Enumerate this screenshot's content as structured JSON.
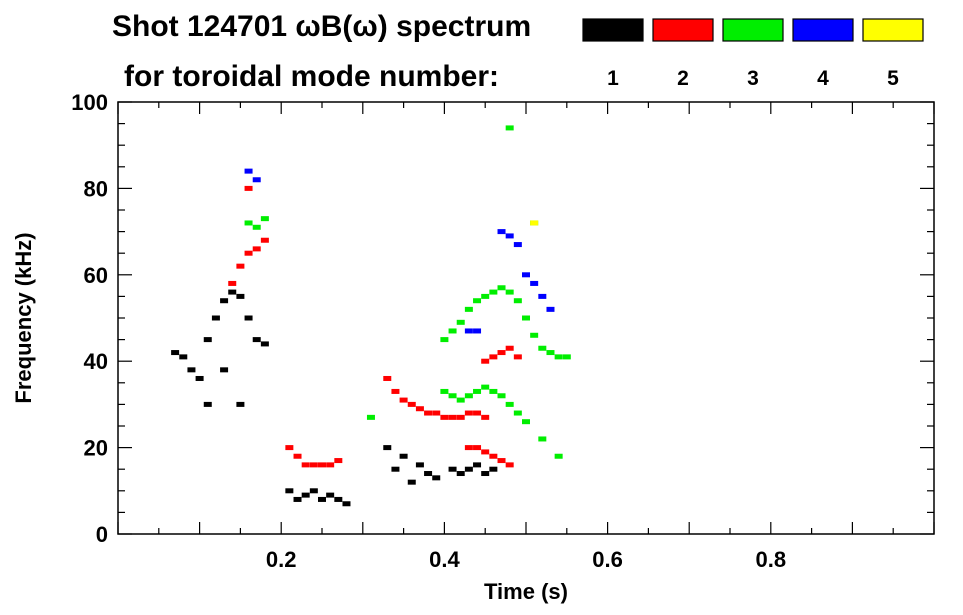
{
  "chart_data": {
    "type": "scatter",
    "title_line1": "Shot 124701 ωB(ω) spectrum",
    "title_line2": "for toroidal mode number:",
    "xlabel": "Time (s)",
    "ylabel": "Frequency (kHz)",
    "xlim": [
      0.0,
      1.0
    ],
    "ylim": [
      0,
      100
    ],
    "xticks": [
      0.2,
      0.4,
      0.6,
      0.8
    ],
    "xtick_labels": [
      "0.2",
      "0.4",
      "0.6",
      "0.8"
    ],
    "yticks": [
      0,
      20,
      40,
      60,
      80,
      100
    ],
    "ytick_labels": [
      "0",
      "20",
      "40",
      "60",
      "80",
      "100"
    ],
    "grid": false,
    "legend_placement": "top-right",
    "series": [
      {
        "name": "1",
        "color": "#000000",
        "points": [
          [
            0.07,
            42
          ],
          [
            0.08,
            41
          ],
          [
            0.09,
            38
          ],
          [
            0.1,
            36
          ],
          [
            0.11,
            45
          ],
          [
            0.12,
            50
          ],
          [
            0.13,
            54
          ],
          [
            0.14,
            56
          ],
          [
            0.15,
            55
          ],
          [
            0.16,
            50
          ],
          [
            0.17,
            45
          ],
          [
            0.18,
            44
          ],
          [
            0.11,
            30
          ],
          [
            0.13,
            38
          ],
          [
            0.15,
            30
          ],
          [
            0.21,
            10
          ],
          [
            0.22,
            8
          ],
          [
            0.23,
            9
          ],
          [
            0.24,
            10
          ],
          [
            0.25,
            8
          ],
          [
            0.26,
            9
          ],
          [
            0.27,
            8
          ],
          [
            0.28,
            7
          ],
          [
            0.33,
            20
          ],
          [
            0.34,
            15
          ],
          [
            0.35,
            18
          ],
          [
            0.36,
            12
          ],
          [
            0.37,
            16
          ],
          [
            0.38,
            14
          ],
          [
            0.39,
            13
          ],
          [
            0.41,
            15
          ],
          [
            0.42,
            14
          ],
          [
            0.43,
            15
          ],
          [
            0.44,
            16
          ],
          [
            0.45,
            14
          ],
          [
            0.46,
            15
          ]
        ]
      },
      {
        "name": "2",
        "color": "#ff0000",
        "points": [
          [
            0.14,
            58
          ],
          [
            0.15,
            62
          ],
          [
            0.16,
            65
          ],
          [
            0.17,
            66
          ],
          [
            0.18,
            68
          ],
          [
            0.16,
            80
          ],
          [
            0.21,
            20
          ],
          [
            0.22,
            18
          ],
          [
            0.23,
            16
          ],
          [
            0.24,
            16
          ],
          [
            0.25,
            16
          ],
          [
            0.26,
            16
          ],
          [
            0.27,
            17
          ],
          [
            0.33,
            36
          ],
          [
            0.34,
            33
          ],
          [
            0.35,
            31
          ],
          [
            0.36,
            30
          ],
          [
            0.37,
            29
          ],
          [
            0.38,
            28
          ],
          [
            0.39,
            28
          ],
          [
            0.4,
            27
          ],
          [
            0.41,
            27
          ],
          [
            0.42,
            27
          ],
          [
            0.43,
            28
          ],
          [
            0.44,
            28
          ],
          [
            0.45,
            27
          ],
          [
            0.43,
            20
          ],
          [
            0.44,
            20
          ],
          [
            0.45,
            19
          ],
          [
            0.46,
            18
          ],
          [
            0.47,
            17
          ],
          [
            0.48,
            16
          ],
          [
            0.45,
            40
          ],
          [
            0.46,
            41
          ],
          [
            0.47,
            42
          ],
          [
            0.48,
            43
          ],
          [
            0.49,
            41
          ]
        ]
      },
      {
        "name": "3",
        "color": "#00ee00",
        "points": [
          [
            0.16,
            72
          ],
          [
            0.17,
            71
          ],
          [
            0.18,
            73
          ],
          [
            0.31,
            27
          ],
          [
            0.4,
            45
          ],
          [
            0.41,
            47
          ],
          [
            0.42,
            49
          ],
          [
            0.43,
            52
          ],
          [
            0.44,
            54
          ],
          [
            0.45,
            55
          ],
          [
            0.46,
            56
          ],
          [
            0.47,
            57
          ],
          [
            0.48,
            56
          ],
          [
            0.49,
            54
          ],
          [
            0.5,
            50
          ],
          [
            0.51,
            46
          ],
          [
            0.52,
            43
          ],
          [
            0.53,
            42
          ],
          [
            0.54,
            41
          ],
          [
            0.55,
            41
          ],
          [
            0.4,
            33
          ],
          [
            0.41,
            32
          ],
          [
            0.42,
            31
          ],
          [
            0.43,
            32
          ],
          [
            0.44,
            33
          ],
          [
            0.45,
            34
          ],
          [
            0.46,
            33
          ],
          [
            0.47,
            32
          ],
          [
            0.48,
            30
          ],
          [
            0.49,
            28
          ],
          [
            0.5,
            26
          ],
          [
            0.52,
            22
          ],
          [
            0.54,
            18
          ],
          [
            0.48,
            94
          ],
          [
            0.51,
            72
          ]
        ]
      },
      {
        "name": "4",
        "color": "#0000ff",
        "points": [
          [
            0.16,
            84
          ],
          [
            0.17,
            82
          ],
          [
            0.43,
            47
          ],
          [
            0.44,
            47
          ],
          [
            0.47,
            70
          ],
          [
            0.48,
            69
          ],
          [
            0.49,
            67
          ],
          [
            0.5,
            60
          ],
          [
            0.51,
            58
          ],
          [
            0.52,
            55
          ],
          [
            0.53,
            52
          ]
        ]
      },
      {
        "name": "5",
        "color": "#ffff00",
        "points": [
          [
            0.51,
            72
          ]
        ]
      }
    ]
  }
}
